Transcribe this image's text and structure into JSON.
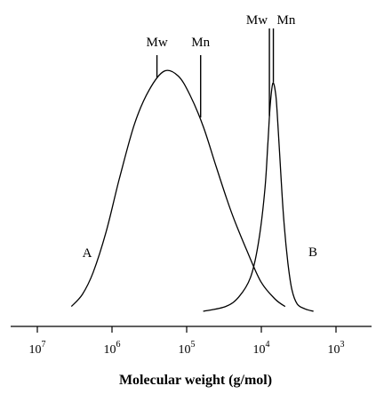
{
  "chart_data": {
    "type": "line",
    "xlabel": "Molecular weight (g/mol)",
    "ylabel": "",
    "x_scale": "log",
    "x_reversed": true,
    "xlim": [
      20000000,
      500
    ],
    "ylim": [
      0,
      1
    ],
    "grid": false,
    "x_ticks": [
      {
        "value": 10000000,
        "base": "10",
        "exp": "7"
      },
      {
        "value": 1000000,
        "base": "10",
        "exp": "6"
      },
      {
        "value": 100000,
        "base": "10",
        "exp": "5"
      },
      {
        "value": 10000,
        "base": "10",
        "exp": "4"
      },
      {
        "value": 1000,
        "base": "10",
        "exp": "3"
      }
    ],
    "series": [
      {
        "name": "A",
        "x": [
          3500000,
          2500000,
          1800000,
          1200000,
          800000,
          500000,
          320000,
          200000,
          130000,
          90000,
          60000,
          40000,
          25000,
          15000,
          10000,
          6500,
          4800
        ],
        "y": [
          0.02,
          0.07,
          0.16,
          0.33,
          0.55,
          0.78,
          0.92,
          1.0,
          0.98,
          0.9,
          0.77,
          0.6,
          0.41,
          0.24,
          0.12,
          0.05,
          0.02
        ]
      },
      {
        "name": "B",
        "x": [
          60000,
          30000,
          20000,
          14000,
          11000,
          9000,
          8200,
          7600,
          7000,
          6400,
          6000,
          5500,
          5000,
          4400,
          3900,
          3300,
          2600,
          2000
        ],
        "y": [
          0.0,
          0.02,
          0.06,
          0.14,
          0.28,
          0.5,
          0.69,
          0.86,
          0.95,
          0.9,
          0.78,
          0.58,
          0.38,
          0.2,
          0.09,
          0.03,
          0.01,
          0.0
        ]
      }
    ],
    "markers": [
      {
        "label": "Mw",
        "series": "A",
        "x": 250000
      },
      {
        "label": "Mn",
        "series": "A",
        "x": 65000
      },
      {
        "label": "Mw",
        "series": "B",
        "x": 7800
      },
      {
        "label": "Mn",
        "series": "B",
        "x": 6900
      }
    ],
    "curve_labels": [
      "A",
      "B"
    ]
  }
}
